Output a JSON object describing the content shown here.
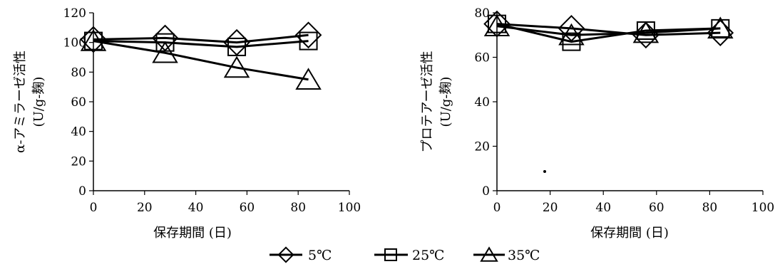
{
  "chart_data": [
    {
      "type": "line",
      "xlabel": "保存期間 (日)",
      "ylabel_line1": "α-アミラーゼ活性",
      "ylabel_line2": "(U/g-麹)",
      "xlim": [
        0,
        100
      ],
      "ylim": [
        0,
        120
      ],
      "xticks": [
        0,
        20,
        40,
        60,
        80,
        100
      ],
      "yticks": [
        0,
        20,
        40,
        60,
        80,
        100,
        120
      ],
      "x": [
        0,
        28,
        56,
        84
      ],
      "series": [
        {
          "name": "5℃",
          "marker": "diamond",
          "values": [
            102,
            103,
            100,
            105
          ]
        },
        {
          "name": "25℃",
          "marker": "square",
          "values": [
            101,
            100,
            97,
            101
          ]
        },
        {
          "name": "35℃",
          "marker": "triangle",
          "values": [
            101,
            93,
            83,
            75
          ]
        }
      ]
    },
    {
      "type": "line",
      "xlabel": "保存期間 (日)",
      "ylabel_line1": "プロテアーゼ活性",
      "ylabel_line2": "(U/g-麹)",
      "xlim": [
        0,
        100
      ],
      "ylim": [
        0,
        80
      ],
      "xticks": [
        0,
        20,
        40,
        60,
        80,
        100
      ],
      "yticks": [
        0,
        20,
        40,
        60,
        80
      ],
      "x": [
        0,
        28,
        56,
        84
      ],
      "series": [
        {
          "name": "5℃",
          "marker": "diamond",
          "values": [
            75,
            73,
            70,
            71
          ]
        },
        {
          "name": "25℃",
          "marker": "square",
          "values": [
            75,
            67,
            72,
            73
          ]
        },
        {
          "name": "35℃",
          "marker": "triangle",
          "values": [
            74,
            70,
            71,
            73
          ]
        }
      ]
    }
  ],
  "legend": {
    "placement": "bottom-center",
    "entries": [
      {
        "label": "5℃",
        "marker": "diamond"
      },
      {
        "label": "25℃",
        "marker": "square"
      },
      {
        "label": "35℃",
        "marker": "triangle"
      }
    ]
  }
}
